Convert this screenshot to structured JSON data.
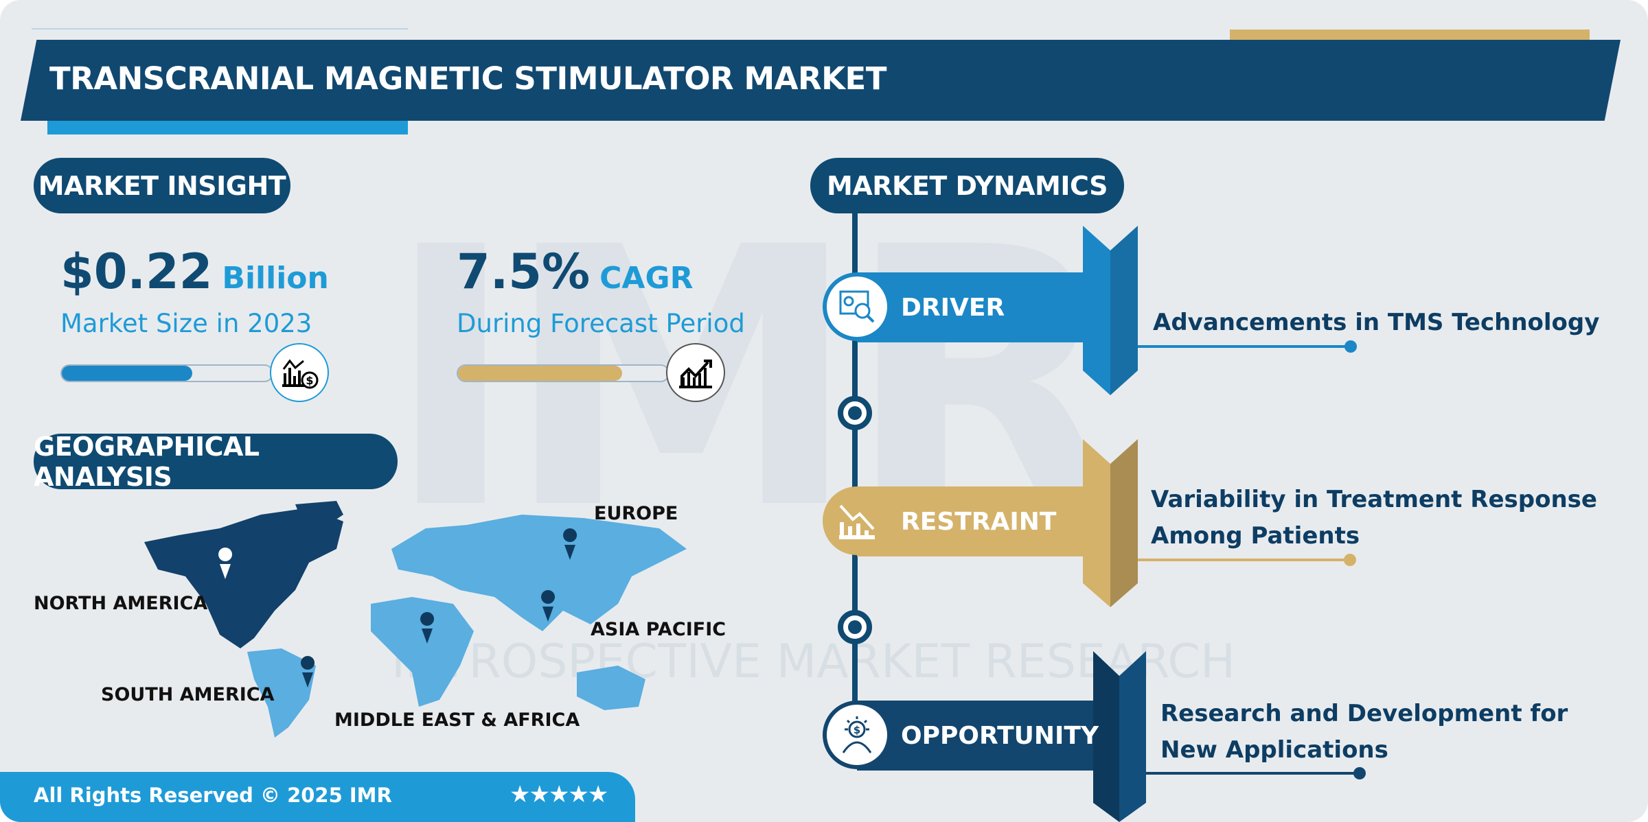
{
  "title": "TRANSCRANIAL MAGNETIC STIMULATOR MARKET",
  "watermark": {
    "logo": "IMR",
    "text": "INTROSPECTIVE MARKET RESEARCH"
  },
  "market_insight": {
    "heading": "MARKET INSIGHT",
    "size": {
      "value": "$0.22",
      "unit": "Billion",
      "label": "Market Size in 2023",
      "bar_fill_pct": 62,
      "icon": "chart-dollar-icon"
    },
    "cagr": {
      "value": "7.5%",
      "unit": "CAGR",
      "label": "During Forecast Period",
      "bar_fill_pct": 78,
      "icon": "growth-chart-icon"
    }
  },
  "geographical_analysis": {
    "heading": "GEOGRAPHICAL ANALYSIS",
    "regions": [
      "NORTH AMERICA",
      "EUROPE",
      "ASIA PACIFIC",
      "SOUTH AMERICA",
      "MIDDLE EAST & AFRICA"
    ],
    "highlighted_region": "NORTH AMERICA"
  },
  "market_dynamics": {
    "heading": "MARKET DYNAMICS",
    "items": [
      {
        "label": "DRIVER",
        "lines": [
          "Advancements in TMS Technology"
        ],
        "color": "#1b87c6",
        "icon": "analytics-icon"
      },
      {
        "label": "RESTRAINT",
        "lines": [
          "Variability in Treatment Response",
          "Among Patients"
        ],
        "color": "#d4b26a",
        "icon": "declining-chart-icon"
      },
      {
        "label": "OPPORTUNITY",
        "lines": [
          "Research and Development for",
          "New Applications"
        ],
        "color": "#12466f",
        "icon": "idea-dollar-icon"
      }
    ]
  },
  "footer": {
    "copyright": "All Rights Reserved © 2025 IMR",
    "stars": "★★★★★",
    "rating": 5
  },
  "colors": {
    "navy": "#0f4a72",
    "accent_blue": "#1e9bd7",
    "gold": "#d4b26a",
    "background": "#e8ebee"
  }
}
